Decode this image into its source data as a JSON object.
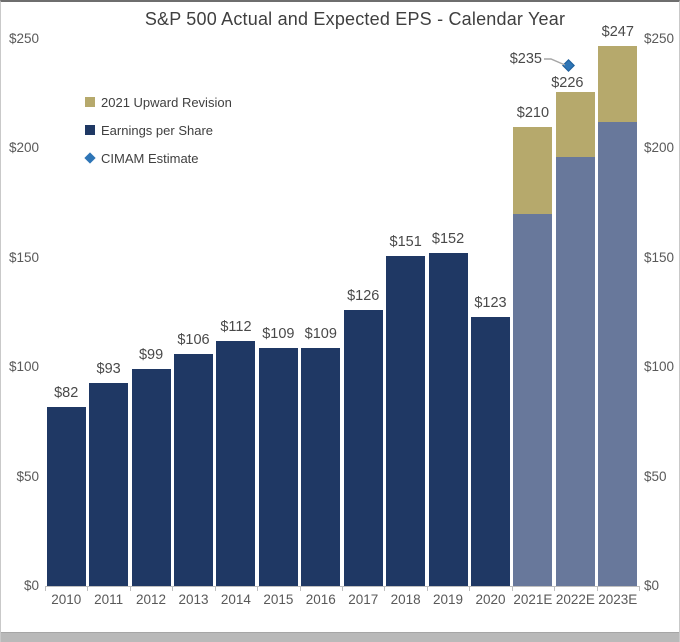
{
  "chart_data": {
    "type": "bar",
    "stacked": true,
    "title": "S&P 500 Actual and Expected EPS - Calendar Year",
    "categories": [
      "2010",
      "2011",
      "2012",
      "2013",
      "2014",
      "2015",
      "2016",
      "2017",
      "2018",
      "2019",
      "2020",
      "2021E",
      "2022E",
      "2023E"
    ],
    "series": [
      {
        "name": "Earnings per Share",
        "values": [
          82,
          93,
          99,
          106,
          112,
          109,
          109,
          126,
          151,
          152,
          123,
          170,
          196,
          212
        ]
      },
      {
        "name": "2021 Upward Revision",
        "values": [
          0,
          0,
          0,
          0,
          0,
          0,
          0,
          0,
          0,
          0,
          0,
          40,
          30,
          35
        ]
      }
    ],
    "totals": [
      82,
      93,
      99,
      106,
      112,
      109,
      109,
      126,
      151,
      152,
      123,
      210,
      226,
      247
    ],
    "bar_labels": [
      "$82",
      "$93",
      "$99",
      "$106",
      "$112",
      "$109",
      "$109",
      "$126",
      "$151",
      "$152",
      "$123",
      "$210",
      "$226",
      "$247"
    ],
    "estimate_categories": [
      "2021E",
      "2022E",
      "2023E"
    ],
    "point": {
      "name": "CIMAM Estimate",
      "category": "2022E",
      "value": 235,
      "label": "$235"
    },
    "y_axis": {
      "min": 0,
      "max": 250,
      "tick_interval": 50,
      "tick_labels": [
        "$0",
        "$50",
        "$100",
        "$150",
        "$200",
        "$250"
      ],
      "label_sides": "both"
    },
    "gridlines": "none",
    "legend": {
      "position": "upper-left",
      "entries": [
        {
          "label": "2021 Upward Revision",
          "marker": "square",
          "color": "#b6a96c"
        },
        {
          "label": "Earnings per Share",
          "marker": "square",
          "color": "#1f3864"
        },
        {
          "label": "CIMAM Estimate",
          "marker": "diamond",
          "color": "#2e75b6"
        }
      ]
    },
    "colors": {
      "actual_eps_bar": "#1f3864",
      "estimate_eps_bar": "#68789b",
      "upward_revision_bar": "#b6a96c",
      "estimate_point": "#2e75b6",
      "leader_line": "#a6a6a6",
      "axis_line": "#bfbfbf",
      "axis_text": "#595959",
      "bar_label_text": "#494949",
      "title_text": "#3f3f3f"
    }
  }
}
